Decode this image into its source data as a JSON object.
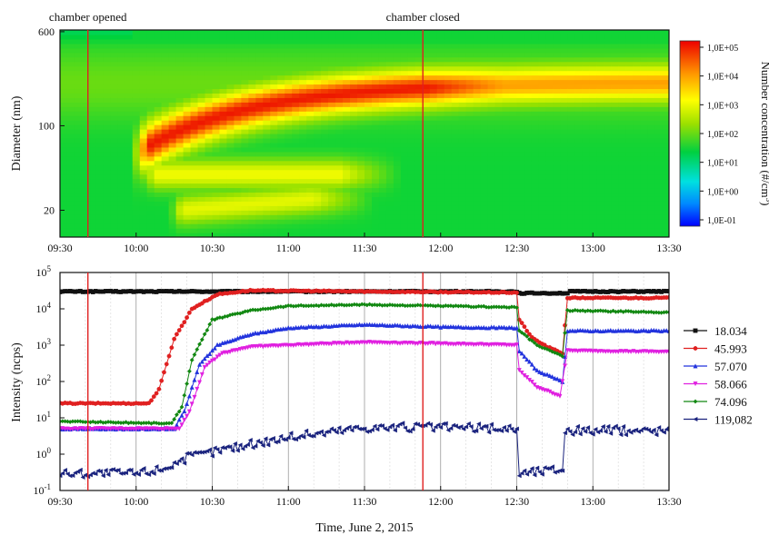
{
  "chart_data": [
    {
      "type": "heatmap",
      "title": "",
      "xlabel": "",
      "ylabel": "Diameter (nm)",
      "x_ticks": [
        "09:30",
        "10:00",
        "10:30",
        "11:00",
        "11:30",
        "12:00",
        "12:30",
        "13:00",
        "13:30"
      ],
      "y_ticks": [
        "20",
        "100",
        "600"
      ],
      "y_scale": "log",
      "ylim": [
        12,
        620
      ],
      "colorbar_label": "Number concentration (#/cm",
      "colorbar_label_sup": "3",
      "colorbar_label_end": ")",
      "colorbar_ticks": [
        "1,0E+05",
        "1,0E+04",
        "1,0E+03",
        "1,0E+02",
        "1,0E+01",
        "1,0E+00",
        "1,0E-01"
      ],
      "annotations": [
        {
          "text": "chamber opened",
          "time": "09:41"
        },
        {
          "text": "chamber closed",
          "time": "11:53"
        }
      ],
      "modes": [
        {
          "start": "10:00",
          "end": "13:30",
          "diameter_start_nm": 60,
          "diameter_end_nm": 230,
          "peak_log10_conc": 4.9
        },
        {
          "start": "10:04",
          "end": "11:20",
          "diameter_start_nm": 40,
          "diameter_end_nm": 40,
          "peak_log10_conc": 3.7
        },
        {
          "start": "10:15",
          "end": "11:10",
          "diameter_start_nm": 20,
          "diameter_end_nm": 25,
          "peak_log10_conc": 3.6
        }
      ]
    },
    {
      "type": "scatter",
      "xlabel": "Time, June 2, 2015",
      "ylabel": "Intensity (ncps)",
      "y_scale": "log",
      "ylim": [
        0.1,
        100000
      ],
      "x_ticks": [
        "09:30",
        "10:00",
        "10:30",
        "11:00",
        "11:30",
        "12:00",
        "12:30",
        "13:00",
        "13:30"
      ],
      "y_ticks": [
        "10^-1",
        "10^0",
        "10^1",
        "10^2",
        "10^3",
        "10^4",
        "10^5"
      ],
      "legend_position": "right",
      "series": [
        {
          "name": "18.034",
          "color": "#111111",
          "marker": "square",
          "points": [
            [
              "09:30",
              30000
            ],
            [
              "10:00",
              30000
            ],
            [
              "10:30",
              30000
            ],
            [
              "11:00",
              30000
            ],
            [
              "11:30",
              30000
            ],
            [
              "12:00",
              30000
            ],
            [
              "12:30",
              30000
            ],
            [
              "12:31",
              27000
            ],
            [
              "12:50",
              27000
            ],
            [
              "12:51",
              30000
            ],
            [
              "13:30",
              30000
            ]
          ]
        },
        {
          "name": "45.993",
          "color": "#e02020",
          "marker": "circle",
          "points": [
            [
              "09:30",
              25
            ],
            [
              "10:05",
              25
            ],
            [
              "10:09",
              60
            ],
            [
              "10:15",
              1500
            ],
            [
              "10:22",
              10000
            ],
            [
              "10:32",
              25000
            ],
            [
              "10:45",
              32000
            ],
            [
              "11:30",
              30000
            ],
            [
              "12:30",
              28000
            ],
            [
              "12:31",
              5000
            ],
            [
              "12:36",
              1600
            ],
            [
              "12:42",
              900
            ],
            [
              "12:48",
              600
            ],
            [
              "12:50",
              20000
            ],
            [
              "13:30",
              20000
            ]
          ]
        },
        {
          "name": "57.070",
          "color": "#2233dd",
          "marker": "triangle-up",
          "points": [
            [
              "09:30",
              5
            ],
            [
              "10:15",
              5
            ],
            [
              "10:19",
              15
            ],
            [
              "10:25",
              300
            ],
            [
              "10:32",
              1000
            ],
            [
              "10:45",
              2000
            ],
            [
              "11:00",
              3000
            ],
            [
              "11:30",
              3700
            ],
            [
              "12:00",
              3200
            ],
            [
              "12:30",
              3000
            ],
            [
              "12:31",
              700
            ],
            [
              "12:38",
              200
            ],
            [
              "12:48",
              100
            ],
            [
              "12:50",
              2500
            ],
            [
              "13:30",
              2500
            ]
          ]
        },
        {
          "name": "58.066",
          "color": "#e020e0",
          "marker": "triangle-down",
          "points": [
            [
              "09:30",
              5
            ],
            [
              "10:17",
              5
            ],
            [
              "10:21",
              15
            ],
            [
              "10:27",
              250
            ],
            [
              "10:34",
              600
            ],
            [
              "10:45",
              900
            ],
            [
              "11:30",
              1200
            ],
            [
              "12:00",
              1100
            ],
            [
              "12:30",
              1000
            ],
            [
              "12:31",
              200
            ],
            [
              "12:38",
              70
            ],
            [
              "12:47",
              40
            ],
            [
              "12:50",
              700
            ],
            [
              "13:30",
              650
            ]
          ]
        },
        {
          "name": "74.096",
          "color": "#118811",
          "marker": "diamond",
          "points": [
            [
              "09:30",
              8
            ],
            [
              "10:14",
              7
            ],
            [
              "10:18",
              20
            ],
            [
              "10:22",
              400
            ],
            [
              "10:30",
              5000
            ],
            [
              "10:45",
              9000
            ],
            [
              "11:00",
              12000
            ],
            [
              "11:30",
              13000
            ],
            [
              "12:00",
              12000
            ],
            [
              "12:30",
              11000
            ],
            [
              "12:31",
              2500
            ],
            [
              "12:38",
              1000
            ],
            [
              "12:48",
              500
            ],
            [
              "12:50",
              9000
            ],
            [
              "13:30",
              8000
            ]
          ]
        },
        {
          "name": "119,082",
          "color": "#1a237e",
          "marker": "triangle-left",
          "points": [
            [
              "09:30",
              0.3
            ],
            [
              "10:00",
              0.3
            ],
            [
              "10:10",
              0.4
            ],
            [
              "10:20",
              0.8
            ],
            [
              "10:35",
              1.4
            ],
            [
              "11:00",
              3
            ],
            [
              "11:30",
              5.5
            ],
            [
              "12:00",
              5.5
            ],
            [
              "12:30",
              5
            ],
            [
              "12:31",
              0.3
            ],
            [
              "12:48",
              0.4
            ],
            [
              "12:49",
              4.5
            ],
            [
              "13:30",
              4.5
            ]
          ]
        }
      ]
    }
  ]
}
